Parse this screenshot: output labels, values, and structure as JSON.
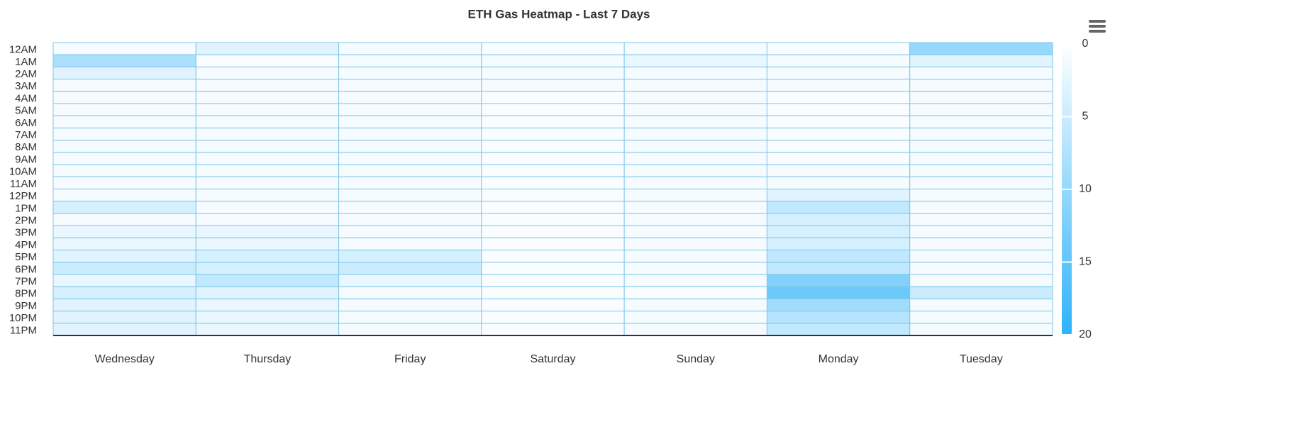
{
  "chart_data": {
    "type": "heatmap",
    "title": "ETH Gas Heatmap - Last 7 Days",
    "x": [
      "Wednesday",
      "Thursday",
      "Friday",
      "Saturday",
      "Sunday",
      "Monday",
      "Tuesday"
    ],
    "y": [
      "12AM",
      "1AM",
      "2AM",
      "3AM",
      "4AM",
      "5AM",
      "6AM",
      "7AM",
      "8AM",
      "9AM",
      "10AM",
      "11AM",
      "12PM",
      "1PM",
      "2PM",
      "3PM",
      "4PM",
      "5PM",
      "6PM",
      "7PM",
      "8PM",
      "9PM",
      "10PM",
      "11PM"
    ],
    "values": [
      [
        1,
        8,
        3,
        1,
        1,
        1,
        1,
        1,
        1,
        1,
        1,
        1,
        1,
        4,
        1,
        2,
        2,
        3,
        5,
        2,
        4,
        3,
        3,
        3
      ],
      [
        3,
        0.5,
        1,
        1,
        1,
        1,
        1,
        1,
        1,
        1,
        1,
        1,
        1,
        1,
        1,
        2,
        2,
        4,
        4,
        6,
        3,
        2,
        2,
        2
      ],
      [
        1,
        1,
        1,
        1,
        1,
        1,
        1,
        1,
        1,
        1,
        1,
        1,
        1,
        1,
        1,
        1,
        1,
        4,
        5,
        2,
        1,
        1,
        1,
        1
      ],
      [
        0.5,
        1,
        1,
        1,
        0.5,
        0.5,
        0.5,
        0.5,
        0.5,
        0.5,
        0.5,
        0.5,
        0.5,
        0.5,
        0.5,
        0.5,
        0.5,
        0.5,
        0.5,
        0.5,
        0.5,
        0.5,
        0.5,
        0.5
      ],
      [
        1,
        2,
        1,
        1,
        1,
        1,
        1,
        1,
        1,
        1,
        1,
        1,
        1,
        1,
        1,
        1,
        1,
        1,
        1,
        1,
        0.5,
        1,
        1,
        1
      ],
      [
        0.5,
        1,
        1,
        1,
        0.5,
        0.5,
        0.5,
        0.5,
        0.5,
        0.5,
        1,
        1,
        3,
        6,
        4,
        4,
        4,
        6,
        6,
        12,
        14,
        9,
        7,
        6
      ],
      [
        10,
        3,
        1,
        1,
        1,
        1,
        1,
        1,
        1,
        1,
        1,
        1,
        1,
        1,
        1,
        1,
        1,
        1,
        1,
        1,
        5,
        1,
        1,
        1
      ]
    ],
    "color_min": "#ffffff",
    "color_max": "#2eb2fb",
    "colorlim": [
      0,
      20
    ],
    "colorticks": [
      0,
      5,
      10,
      15,
      20
    ]
  }
}
